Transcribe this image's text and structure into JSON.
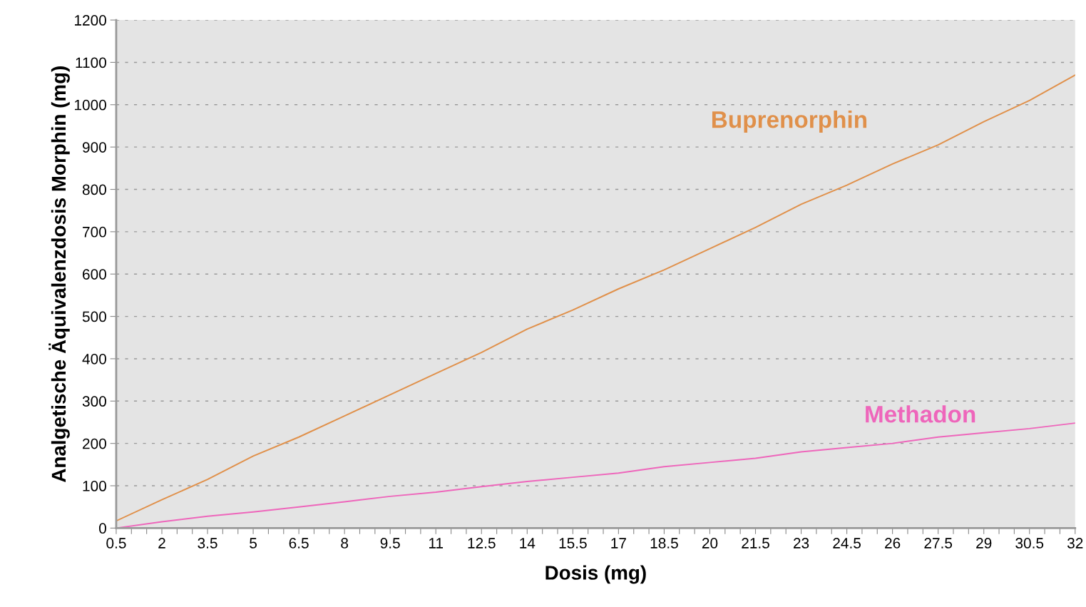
{
  "chart_data": {
    "type": "line",
    "xlabel": "Dosis (mg)",
    "ylabel": "Analgetische Äquivalenzdosis Morphin (mg)",
    "x": [
      0.5,
      2,
      3.5,
      5,
      6.5,
      8,
      9.5,
      11,
      12.5,
      14,
      15.5,
      17,
      18.5,
      20,
      21.5,
      23,
      24.5,
      26,
      27.5,
      29,
      30.5,
      32
    ],
    "series": [
      {
        "name": "Buprenorphin",
        "color": "#e0904a",
        "values": [
          17,
          67,
          115,
          170,
          215,
          265,
          315,
          365,
          415,
          470,
          515,
          565,
          610,
          660,
          710,
          765,
          810,
          860,
          905,
          960,
          1010,
          1070
        ]
      },
      {
        "name": "Methadon",
        "color": "#ee66bb",
        "values": [
          0,
          15,
          28,
          38,
          50,
          62,
          75,
          85,
          98,
          110,
          120,
          130,
          145,
          155,
          165,
          180,
          190,
          200,
          215,
          225,
          235,
          248
        ]
      }
    ],
    "xlim": [
      0.5,
      32
    ],
    "ylim": [
      0,
      1200
    ],
    "yticks": [
      0,
      100,
      200,
      300,
      400,
      500,
      600,
      700,
      800,
      900,
      1000,
      1100,
      1200
    ],
    "xticks": [
      0.5,
      {
        "value": 1,
        "label": null
      },
      {
        "value": 1.5,
        "label": null
      },
      2,
      {
        "value": 2.5,
        "label": null
      },
      {
        "value": 3,
        "label": null
      },
      3.5,
      {
        "value": 4,
        "label": null
      },
      {
        "value": 4.5,
        "label": null
      },
      5,
      {
        "value": 5.5,
        "label": null
      },
      {
        "value": 6,
        "label": null
      },
      6.5,
      {
        "value": 7,
        "label": null
      },
      {
        "value": 7.5,
        "label": null
      },
      8,
      {
        "value": 8.5,
        "label": null
      },
      {
        "value": 9,
        "label": null
      },
      9.5,
      {
        "value": 10,
        "label": null
      },
      {
        "value": 10.5,
        "label": null
      },
      11,
      {
        "value": 11.5,
        "label": null
      },
      {
        "value": 12,
        "label": null
      },
      12.5,
      {
        "value": 13,
        "label": null
      },
      {
        "value": 13.5,
        "label": null
      },
      14,
      {
        "value": 14.5,
        "label": null
      },
      {
        "value": 15,
        "label": null
      },
      15.5,
      {
        "value": 16,
        "label": null
      },
      {
        "value": 16.5,
        "label": null
      },
      17,
      {
        "value": 17.5,
        "label": null
      },
      {
        "value": 18,
        "label": null
      },
      18.5,
      {
        "value": 19,
        "label": null
      },
      {
        "value": 19.5,
        "label": null
      },
      20,
      {
        "value": 20.5,
        "label": null
      },
      {
        "value": 21,
        "label": null
      },
      21.5,
      {
        "value": 22,
        "label": null
      },
      {
        "value": 22.5,
        "label": null
      },
      23,
      {
        "value": 23.5,
        "label": null
      },
      {
        "value": 24,
        "label": null
      },
      24.5,
      {
        "value": 25,
        "label": null
      },
      {
        "value": 25.5,
        "label": null
      },
      26,
      {
        "value": 26.5,
        "label": null
      },
      {
        "value": 27,
        "label": null
      },
      27.5,
      {
        "value": 28,
        "label": null
      },
      {
        "value": 28.5,
        "label": null
      },
      29,
      {
        "value": 29.5,
        "label": null
      },
      {
        "value": 30,
        "label": null
      },
      30.5,
      {
        "value": 31,
        "label": null
      },
      {
        "value": 31.5,
        "label": null
      },
      32
    ],
    "grid": "y",
    "legend": false,
    "marker": "none",
    "line_style": "solid"
  }
}
